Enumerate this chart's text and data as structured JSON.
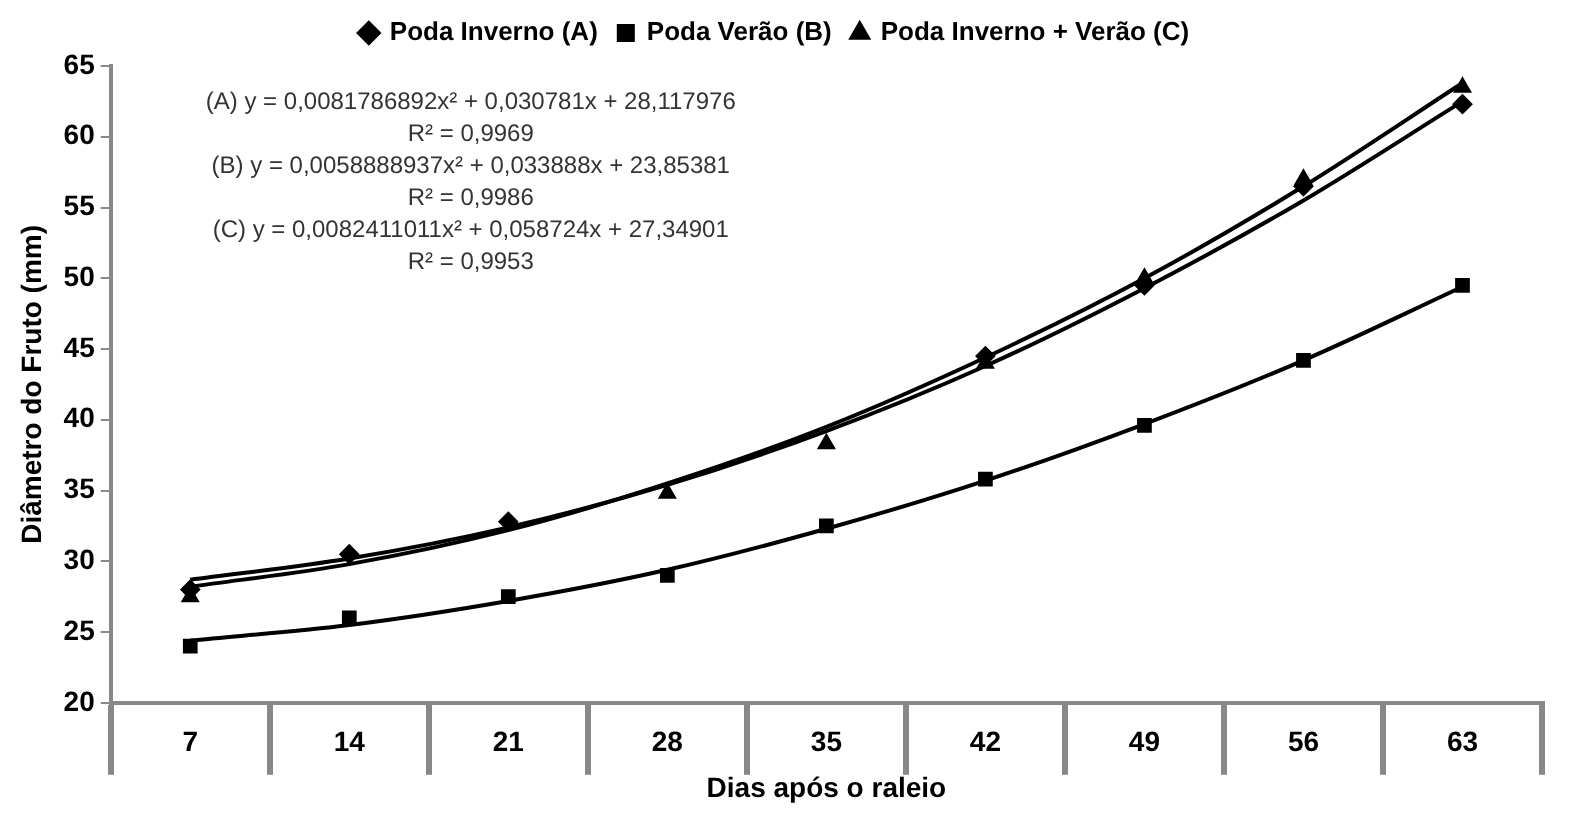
{
  "chart_data": {
    "type": "line",
    "xlabel": "Dias após o raleio",
    "ylabel": "Diâmetro do Fruto (mm)",
    "categories": [
      "7",
      "14",
      "21",
      "28",
      "35",
      "42",
      "49",
      "56",
      "63"
    ],
    "ylim": [
      20,
      65
    ],
    "yticks": [
      20,
      25,
      30,
      35,
      40,
      45,
      50,
      55,
      60,
      65
    ],
    "grid": false,
    "legend": "top",
    "series": [
      {
        "name": "Poda Inverno (A)",
        "type": "scatter",
        "marker": "diamond",
        "color": "#000000",
        "x": [
          "7",
          "14",
          "21",
          "28",
          "35",
          "42",
          "49",
          "56",
          "63"
        ],
        "values": [
          28,
          30.5,
          32.8,
          null,
          null,
          44.5,
          49.5,
          56.5,
          62.3
        ]
      },
      {
        "name": "Poda Verão (B)",
        "type": "scatter",
        "marker": "square",
        "color": "#000000",
        "x": [
          "7",
          "14",
          "21",
          "28",
          "35",
          "42",
          "49",
          "56",
          "63"
        ],
        "values": [
          24,
          26,
          27.5,
          29,
          32.5,
          35.8,
          39.6,
          44.2,
          49.5
        ]
      },
      {
        "name": "Poda Inverno + Verão (C)",
        "type": "scatter",
        "marker": "triangle",
        "color": "#000000",
        "x": [
          "7",
          "14",
          "21",
          "28",
          "35",
          "42",
          "49",
          "56",
          "63"
        ],
        "values": [
          27.5,
          null,
          null,
          34.8,
          38.3,
          44,
          50,
          57,
          63.5
        ]
      },
      {
        "marker": "none",
        "line_style": "solid",
        "color": "#000000",
        "x": [
          "7",
          "14",
          "21",
          "28",
          "35",
          "42",
          "49",
          "56",
          "63"
        ],
        "values": [
          28.7,
          30.2,
          32.4,
          35.4,
          39.2,
          43.8,
          49.3,
          55.5,
          62.5
        ]
      },
      {
        "marker": "none",
        "line_style": "solid",
        "color": "#000000",
        "x": [
          "7",
          "14",
          "21",
          "28",
          "35",
          "42",
          "49",
          "56",
          "63"
        ],
        "values": [
          24.4,
          25.5,
          27.2,
          29.4,
          32.3,
          35.7,
          39.7,
          44.2,
          49.4
        ]
      },
      {
        "marker": "none",
        "line_style": "solid",
        "color": "#000000",
        "x": [
          "7",
          "14",
          "21",
          "28",
          "35",
          "42",
          "49",
          "56",
          "63"
        ],
        "values": [
          28.2,
          29.8,
          32.2,
          35.5,
          39.5,
          44.4,
          50,
          56.5,
          63.8
        ]
      }
    ],
    "annotations": [
      "(A) y = 0,0081786892x² + 0,030781x + 28,117976",
      "R² = 0,9969",
      "(B) y = 0,0058888937x² + 0,033888x + 23,85381",
      "R² = 0,9986",
      "(C) y = 0,0082411011x² + 0,058724x + 27,34901",
      "R² = 0,9953"
    ]
  }
}
